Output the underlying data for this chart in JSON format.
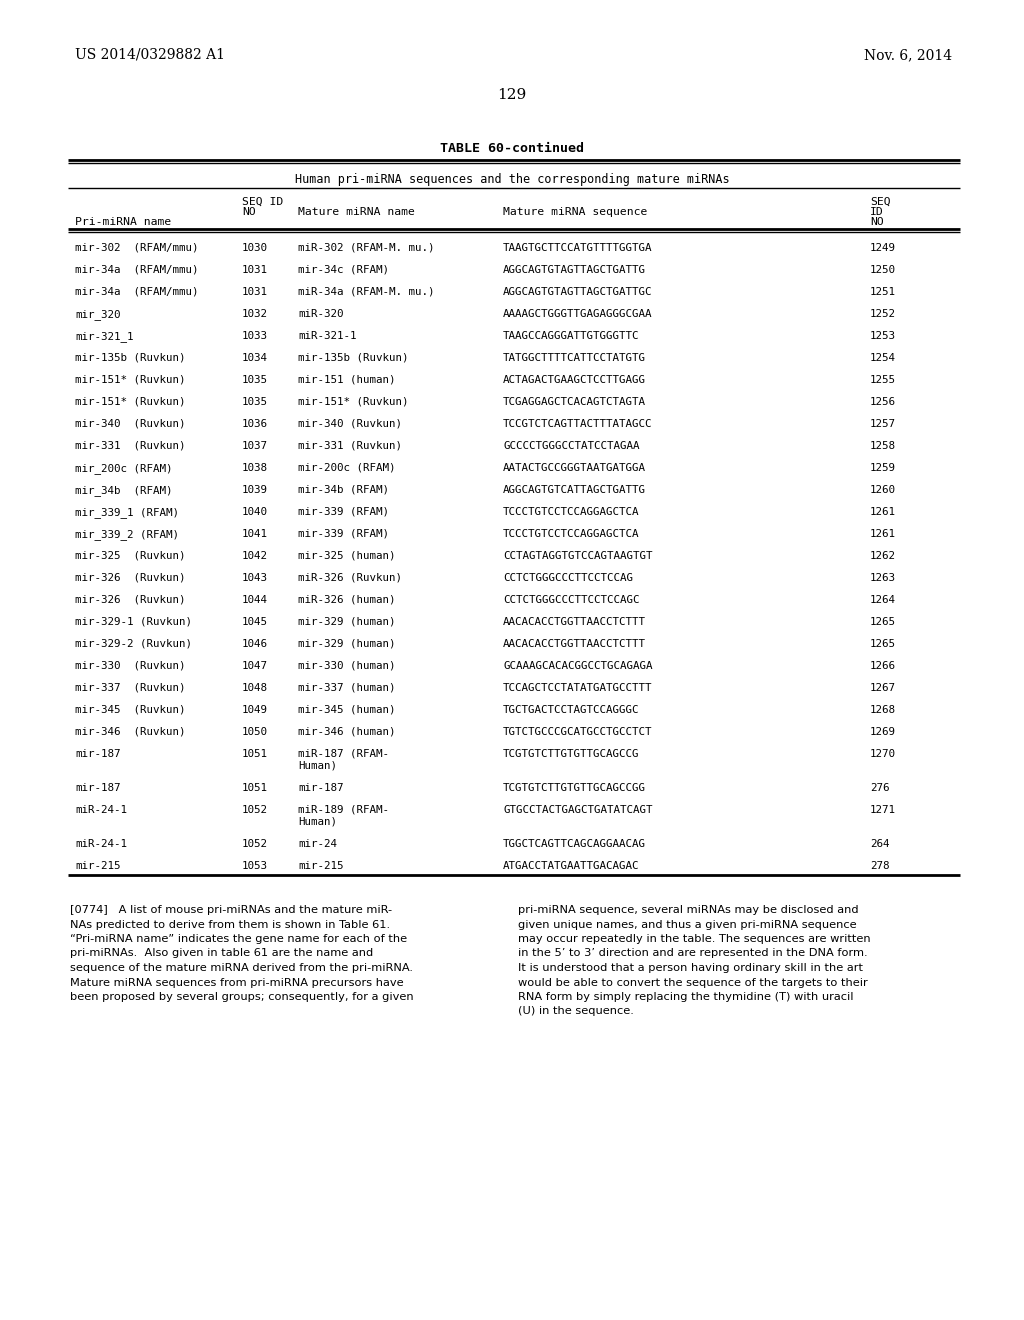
{
  "page_header_left": "US 2014/0329882 A1",
  "page_header_right": "Nov. 6, 2014",
  "page_number": "129",
  "table_title": "TABLE 60-continued",
  "table_subtitle": "Human pri-miRNA sequences and the corresponding mature miRNAs",
  "rows": [
    [
      "mir-302  (RFAM/mmu)",
      "1030",
      "miR-302 (RFAM-M. mu.)",
      "TAAGTGCTTCCATGTTTTGGTGA",
      "1249"
    ],
    [
      "mir-34a  (RFAM/mmu)",
      "1031",
      "mir-34c (RFAM)",
      "AGGCAGTGTAGTTAGCTGATTG",
      "1250"
    ],
    [
      "mir-34a  (RFAM/mmu)",
      "1031",
      "miR-34a (RFAM-M. mu.)",
      "AGGCAGTGTAGTTAGCTGATTGC",
      "1251"
    ],
    [
      "mir_320",
      "1032",
      "miR-320",
      "AAAAGCTGGGTTGAGAGGGCGAA",
      "1252"
    ],
    [
      "mir-321_1",
      "1033",
      "miR-321-1",
      "TAAGCCAGGGATTGTGGGTTC",
      "1253"
    ],
    [
      "mir-135b (Ruvkun)",
      "1034",
      "mir-135b (Ruvkun)",
      "TATGGCTTTTCATTCCTATGTG",
      "1254"
    ],
    [
      "mir-151* (Ruvkun)",
      "1035",
      "mir-151 (human)",
      "ACTAGACTGAAGCTCCTTGAGG",
      "1255"
    ],
    [
      "mir-151* (Ruvkun)",
      "1035",
      "mir-151* (Ruvkun)",
      "TCGAGGAGCTCACAGTCTAGTA",
      "1256"
    ],
    [
      "mir-340  (Ruvkun)",
      "1036",
      "mir-340 (Ruvkun)",
      "TCCGTCTCAGTTACTTTATAGCC",
      "1257"
    ],
    [
      "mir-331  (Ruvkun)",
      "1037",
      "mir-331 (Ruvkun)",
      "GCCCCTGGGCCTATCCTAGAA",
      "1258"
    ],
    [
      "mir_200c (RFAM)",
      "1038",
      "mir-200c (RFAM)",
      "AATACTGCCGGGTAATGATGGA",
      "1259"
    ],
    [
      "mir_34b  (RFAM)",
      "1039",
      "mir-34b (RFAM)",
      "AGGCAGTGTCATTAGCTGATTG",
      "1260"
    ],
    [
      "mir_339_1 (RFAM)",
      "1040",
      "mir-339 (RFAM)",
      "TCCCTGTCCTCCAGGAGCTCA",
      "1261"
    ],
    [
      "mir_339_2 (RFAM)",
      "1041",
      "mir-339 (RFAM)",
      "TCCCTGTCCTCCAGGAGCTCA",
      "1261"
    ],
    [
      "mir-325  (Ruvkun)",
      "1042",
      "mir-325 (human)",
      "CCTAGTAGGTGTCCAGTAAGTGT",
      "1262"
    ],
    [
      "mir-326  (Ruvkun)",
      "1043",
      "miR-326 (Ruvkun)",
      "CCTCTGGGCCCTTCCTCCAG",
      "1263"
    ],
    [
      "mir-326  (Ruvkun)",
      "1044",
      "miR-326 (human)",
      "CCTCTGGGCCCTTCCTCCAGC",
      "1264"
    ],
    [
      "mir-329-1 (Ruvkun)",
      "1045",
      "mir-329 (human)",
      "AACACACCTGGTTAACCTCTTT",
      "1265"
    ],
    [
      "mir-329-2 (Ruvkun)",
      "1046",
      "mir-329 (human)",
      "AACACACCTGGTTAACCTCTTT",
      "1265"
    ],
    [
      "mir-330  (Ruvkun)",
      "1047",
      "mir-330 (human)",
      "GCAAAGCACACGGCCTGCAGAGA",
      "1266"
    ],
    [
      "mir-337  (Ruvkun)",
      "1048",
      "mir-337 (human)",
      "TCCAGCTCCTATATGATGCCTTT",
      "1267"
    ],
    [
      "mir-345  (Ruvkun)",
      "1049",
      "mir-345 (human)",
      "TGCTGACTCCTAGTCCAGGGC",
      "1268"
    ],
    [
      "mir-346  (Ruvkun)",
      "1050",
      "mir-346 (human)",
      "TGTCTGCCCGCATGCCTGCCTCT",
      "1269"
    ],
    [
      "mir-187",
      "1051",
      "miR-187 (RFAM-\nHuman)",
      "TCGTGTCTTGTGTTGCAGCCG",
      "1270"
    ],
    [
      "mir-187",
      "1051",
      "mir-187",
      "TCGTGTCTTGTGTTGCAGCCGG",
      "276"
    ],
    [
      "miR-24-1",
      "1052",
      "miR-189 (RFAM-\nHuman)",
      "GTGCCTACTGAGCTGATATCAGT",
      "1271"
    ],
    [
      "miR-24-1",
      "1052",
      "mir-24",
      "TGGCTCAGTTCAGCAGGAACAG",
      "264"
    ],
    [
      "mir-215",
      "1053",
      "mir-215",
      "ATGACCTATGAATTGACAGAC",
      "278"
    ]
  ],
  "footer_left_lines": [
    "[0774]   A list of mouse pri-miRNAs and the mature miR-",
    "NAs predicted to derive from them is shown in Table 61.",
    "“Pri-miRNA name” indicates the gene name for each of the",
    "pri-miRNAs.  Also given in table 61 are the name and",
    "sequence of the mature miRNA derived from the pri-miRNA.",
    "Mature miRNA sequences from pri-miRNA precursors have",
    "been proposed by several groups; consequently, for a given"
  ],
  "footer_right_lines": [
    "pri-miRNA sequence, several miRNAs may be disclosed and",
    "given unique names, and thus a given pri-miRNA sequence",
    "may occur repeatedly in the table. The sequences are written",
    "in the 5’ to 3’ direction and are represented in the DNA form.",
    "It is understood that a person having ordinary skill in the art",
    "would be able to convert the sequence of the targets to their",
    "RNA form by simply replacing the thymidine (T) with uracil",
    "(U) in the sequence."
  ],
  "bg_color": "#ffffff"
}
